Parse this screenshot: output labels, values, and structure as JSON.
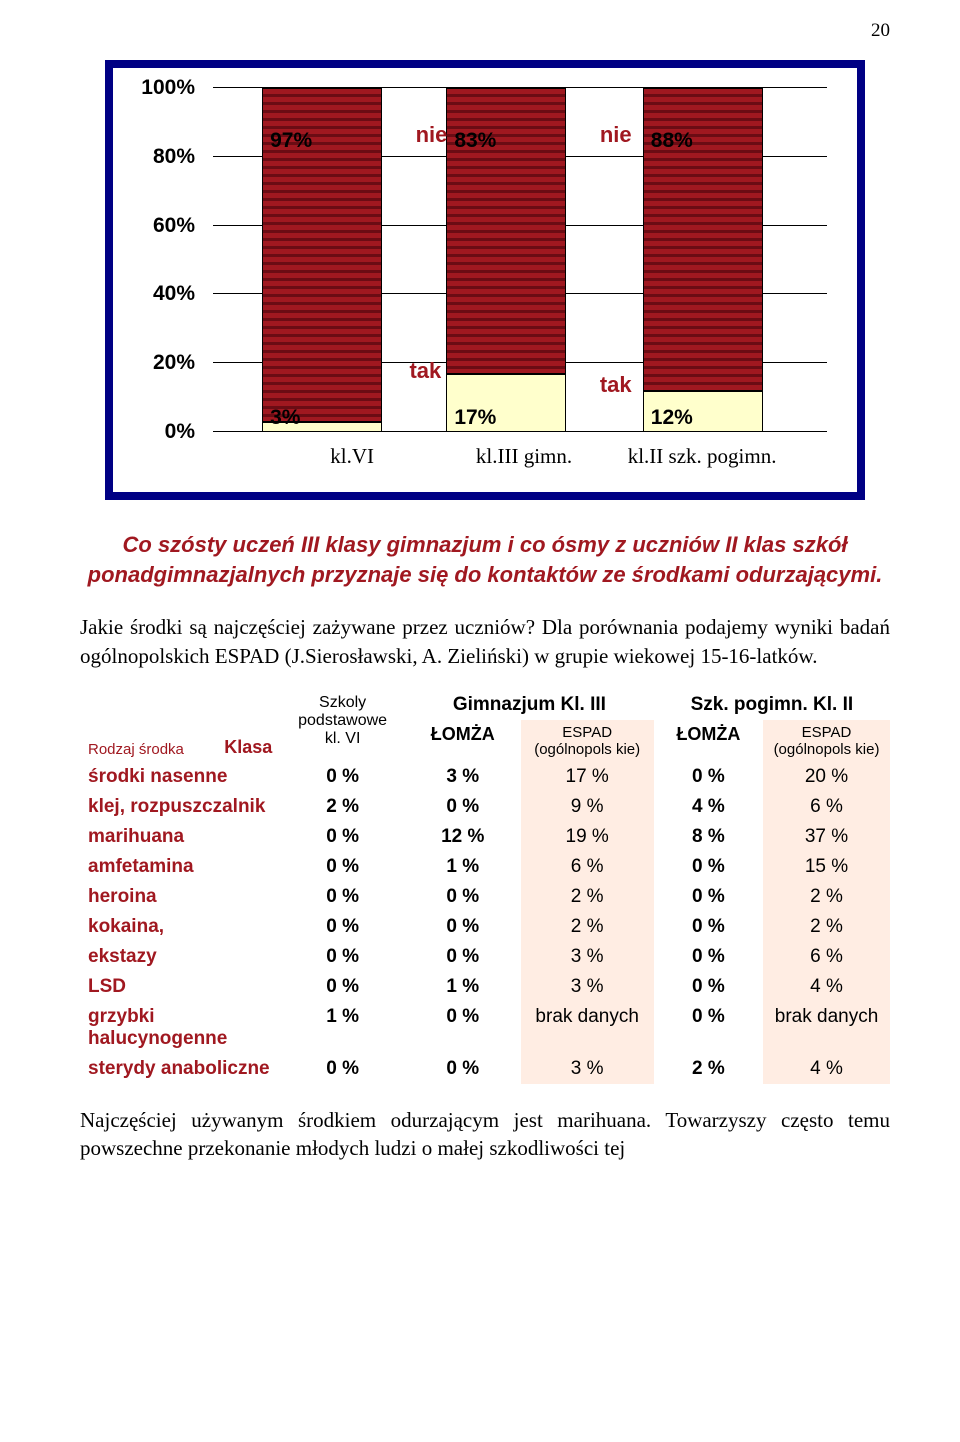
{
  "page_number": "20",
  "chart": {
    "type": "stacked-bar",
    "y_ticks": [
      "0%",
      "20%",
      "40%",
      "60%",
      "80%",
      "100%"
    ],
    "x_labels": [
      "kl.VI",
      "kl.III gimn.",
      "kl.II szk. pogimn."
    ],
    "series_labels": {
      "top": "nie",
      "bottom": "tak"
    },
    "bars": [
      {
        "top_pct": 97,
        "bot_pct": 3,
        "top_label": "97%",
        "bot_label": "3%"
      },
      {
        "top_pct": 83,
        "bot_pct": 17,
        "top_label": "83%",
        "bot_label": "17%"
      },
      {
        "top_pct": 88,
        "bot_pct": 12,
        "top_label": "88%",
        "bot_label": "12%"
      }
    ],
    "colors": {
      "frame": "#000084",
      "top_bar": "#a01820",
      "bot_bar": "#ffffcc",
      "label": "#a01820"
    }
  },
  "callout": "Co szósty uczeń III klasy gimnazjum i co ósmy z uczniów II klas szkół ponadgimnazjalnych przyznaje się do kontaktów ze środkami odurzającymi.",
  "paragraph": "Jakie środki są najczęściej zażywane przez uczniów? Dla porównania podajemy wyniki badań ogólnopolskich ESPAD (J.Sierosławski, A. Zieliński) w grupie wiekowej 15-16-latków.",
  "table": {
    "header": {
      "rodzaj": "Rodzaj środka",
      "klasa": "Klasa",
      "col1": "Szkoly podstawowe kl. VI",
      "group1": "Gimnazjum Kl. III",
      "group2": "Szk. pogimn. Kl. II",
      "lomza": "ŁOMŻA",
      "espad": "ESPAD (ogólnopols kie)"
    },
    "rows": [
      {
        "label": "środki nasenne",
        "c1": "0 %",
        "c2": "3 %",
        "c3": "17 %",
        "c4": "0 %",
        "c5": "20 %"
      },
      {
        "label": "klej, rozpuszczalnik",
        "c1": "2 %",
        "c2": "0 %",
        "c3": "9 %",
        "c4": "4 %",
        "c5": "6 %"
      },
      {
        "label": "marihuana",
        "c1": "0 %",
        "c2": "12 %",
        "c3": "19 %",
        "c4": "8 %",
        "c5": "37 %"
      },
      {
        "label": "amfetamina",
        "c1": "0 %",
        "c2": "1 %",
        "c3": "6 %",
        "c4": "0 %",
        "c5": "15 %"
      },
      {
        "label": "heroina",
        "c1": "0 %",
        "c2": "0 %",
        "c3": "2 %",
        "c4": "0 %",
        "c5": "2 %"
      },
      {
        "label": "kokaina,",
        "c1": "0 %",
        "c2": "0 %",
        "c3": "2 %",
        "c4": "0 %",
        "c5": "2 %"
      },
      {
        "label": "ekstazy",
        "c1": "0 %",
        "c2": "0 %",
        "c3": "3 %",
        "c4": "0 %",
        "c5": "6 %"
      },
      {
        "label": "LSD",
        "c1": "0 %",
        "c2": "1 %",
        "c3": "3 %",
        "c4": "0 %",
        "c5": "4 %"
      },
      {
        "label": "grzybki halucynogenne",
        "c1": "1 %",
        "c2": "0 %",
        "c3": "brak danych",
        "c4": "0 %",
        "c5": "brak danych"
      },
      {
        "label": "sterydy anaboliczne",
        "c1": "0 %",
        "c2": "0 %",
        "c3": "3 %",
        "c4": "2 %",
        "c5": "4 %"
      }
    ]
  },
  "footer_text": "Najczęściej używanym środkiem odurzającym jest marihuana. Towarzyszy często temu powszechne przekonanie młodych ludzi o małej szkodliwości tej"
}
